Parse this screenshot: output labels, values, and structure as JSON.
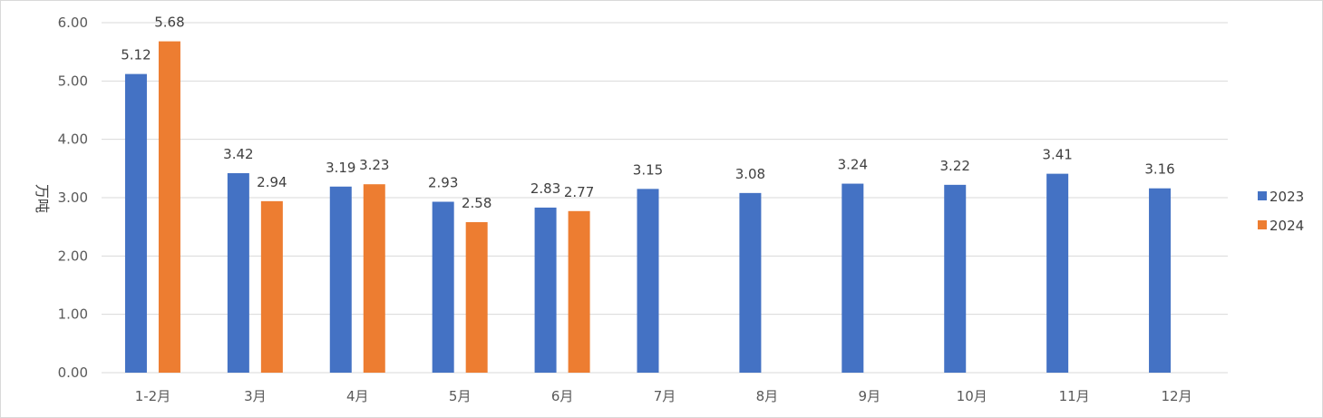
{
  "chart_data": {
    "type": "bar",
    "title": "",
    "xlabel": "",
    "ylabel": "万吨",
    "ylim": [
      0,
      6
    ],
    "yticks": [
      "0.00",
      "1.00",
      "2.00",
      "3.00",
      "4.00",
      "5.00",
      "6.00"
    ],
    "categories": [
      "1-2月",
      "3月",
      "4月",
      "5月",
      "6月",
      "7月",
      "8月",
      "9月",
      "10月",
      "11月",
      "12月"
    ],
    "series": [
      {
        "name": "2023",
        "color": "#4472C4",
        "values": [
          5.12,
          3.42,
          3.19,
          2.93,
          2.83,
          3.15,
          3.08,
          3.24,
          3.22,
          3.41,
          3.16
        ]
      },
      {
        "name": "2024",
        "color": "#ED7D31",
        "values": [
          5.68,
          2.94,
          3.23,
          2.58,
          2.77,
          null,
          null,
          null,
          null,
          null,
          null
        ]
      }
    ],
    "grid": true,
    "legend_position": "right"
  }
}
